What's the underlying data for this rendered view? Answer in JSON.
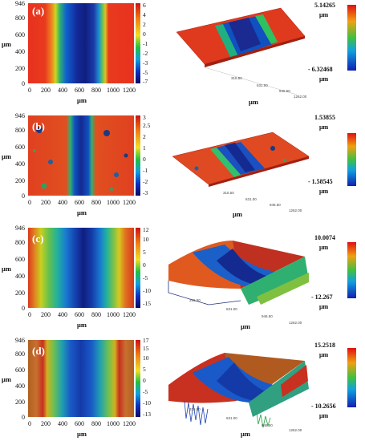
{
  "panels": [
    {
      "tag": "(a)",
      "y_ticks": [
        "946",
        "800",
        "600",
        "400",
        "200",
        "0"
      ],
      "x_ticks": [
        "0",
        "200",
        "400",
        "600",
        "800",
        "1000",
        "1200"
      ],
      "axis_unit": "μm",
      "colorbar_ticks": [
        "6",
        "4",
        "2",
        "0",
        "-1",
        "-2",
        "-3",
        "-5",
        "-7"
      ],
      "view3d_max": "5.14265",
      "view3d_min": "- 6.32468",
      "view3d_unit": "μm",
      "view3d_xticks": [
        "315.50",
        "631.00",
        "946.50",
        "1262.00"
      ],
      "view3d_xlabel": "μm"
    },
    {
      "tag": "(b)",
      "y_ticks": [
        "946",
        "800",
        "600",
        "400",
        "200",
        "0"
      ],
      "x_ticks": [
        "0",
        "200",
        "400",
        "600",
        "800",
        "1000",
        "1200"
      ],
      "axis_unit": "μm",
      "colorbar_ticks": [
        "3",
        "2.5",
        "2",
        "1",
        "0",
        "-1",
        "-2",
        "-3"
      ],
      "view3d_max": "1.53855",
      "view3d_min": "- 1.58545",
      "view3d_unit": "μm",
      "view3d_xticks": [
        "315.50",
        "631.00",
        "946.50",
        "1262.00"
      ],
      "view3d_xlabel": "μm"
    },
    {
      "tag": "(c)",
      "y_ticks": [
        "946",
        "800",
        "600",
        "400",
        "200",
        "0"
      ],
      "x_ticks": [
        "0",
        "200",
        "400",
        "600",
        "800",
        "1000",
        "1200"
      ],
      "axis_unit": "μm",
      "colorbar_ticks": [
        "12",
        "10",
        "5",
        "0",
        "-5",
        "-10",
        "-15"
      ],
      "view3d_max": "10.0074",
      "view3d_min": "- 12.267",
      "view3d_unit": "μm",
      "view3d_xticks": [
        "315.50",
        "631.00",
        "946.50",
        "1262.00"
      ],
      "view3d_xlabel": "μm"
    },
    {
      "tag": "(d)",
      "y_ticks": [
        "946",
        "800",
        "600",
        "400",
        "200",
        "0"
      ],
      "x_ticks": [
        "0",
        "200",
        "400",
        "600",
        "800",
        "1000",
        "1200"
      ],
      "axis_unit": "μm",
      "colorbar_ticks": [
        "17",
        "15",
        "10",
        "5",
        "0",
        "-5",
        "-10",
        "-13"
      ],
      "view3d_max": "15.2518",
      "view3d_min": "- 10.2656",
      "view3d_unit": "μm",
      "view3d_xticks": [
        "315.50",
        "631.00",
        "946.50",
        "1262.00"
      ],
      "view3d_xlabel": "μm"
    }
  ]
}
